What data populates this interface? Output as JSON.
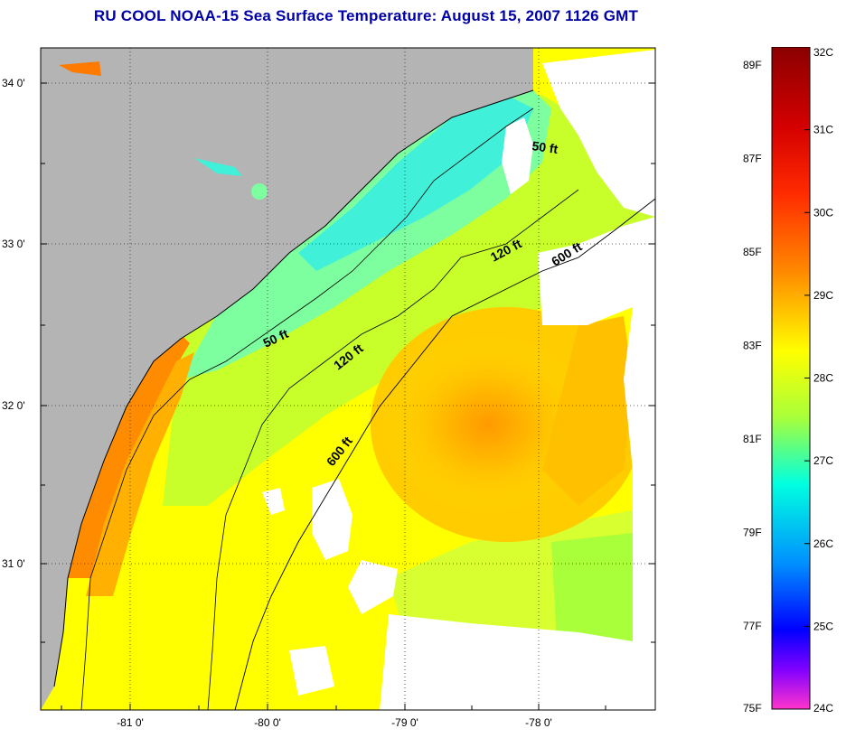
{
  "title": "RU COOL  NOAA-15  Sea Surface Temperature:  August 15, 2007 1126 GMT",
  "axes": {
    "lat_labels": [
      "34 0'",
      "33 0'",
      "32 0'",
      "31 0'"
    ],
    "lon_labels": [
      "-81 0'",
      "-80 0'",
      "-79 0'",
      "-78 0'"
    ]
  },
  "contours": {
    "c50_north": "50 ft",
    "c120_north": "120 ft",
    "c600_north": "600 ft",
    "c50_south": "50 ft",
    "c120_south": "120 ft",
    "c600_south": "600 ft"
  },
  "colorbar": {
    "celsius": [
      "32C",
      "31C",
      "30C",
      "29C",
      "28C",
      "27C",
      "26C",
      "25C",
      "24C"
    ],
    "fahrenheit": [
      "89F",
      "87F",
      "85F",
      "83F",
      "81F",
      "79F",
      "77F",
      "75F"
    ],
    "colors": [
      "#8b0000",
      "#ff0000",
      "#ff6a00",
      "#ffd400",
      "#ffff00",
      "#a8ff3a",
      "#00ffe0",
      "#0090ff",
      "#0000ff",
      "#8000ff",
      "#ff33cc"
    ]
  },
  "colors": {
    "land": "#b4b4b4",
    "cloud": "#ffffff",
    "title": "#0000a8"
  }
}
